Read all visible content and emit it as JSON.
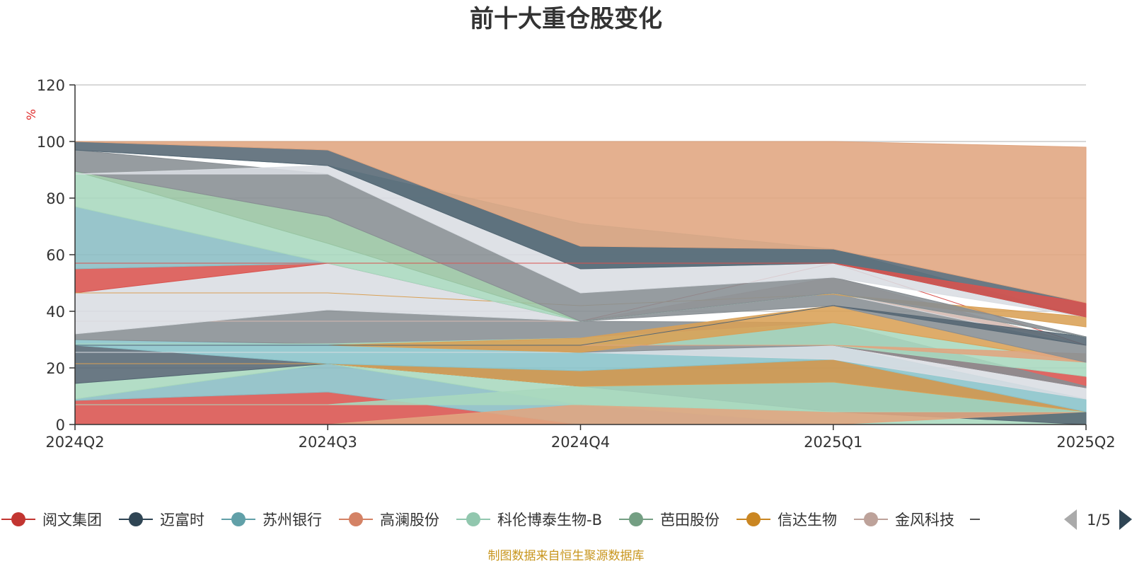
{
  "chart_data": {
    "type": "area",
    "title": "前十大重仓股变化",
    "ylabel": "%",
    "ylim": [
      0,
      120
    ],
    "yticks": [
      "0",
      "20",
      "40",
      "60",
      "80",
      "100",
      "120"
    ],
    "categories": [
      "2024Q2",
      "2024Q3",
      "2024Q4",
      "2025Q1",
      "2025Q2"
    ],
    "layers": [
      {
        "color": "#d9534f",
        "lower": [
          0,
          0,
          0,
          0,
          0
        ],
        "upper": [
          8.5,
          11.5,
          0,
          0,
          0
        ]
      },
      {
        "color": "#8abdc4",
        "lower": [
          8.5,
          11.5,
          0,
          0,
          0
        ],
        "upper": [
          9,
          21.5,
          7,
          0,
          0
        ]
      },
      {
        "color": "#a8d8be",
        "lower": [
          9,
          21.5,
          7,
          0,
          0
        ],
        "upper": [
          14.5,
          21.5,
          13.5,
          4.5,
          4.5
        ]
      },
      {
        "color": "#556673",
        "lower": [
          14.5,
          21.5,
          13.5,
          4.5,
          0
        ],
        "upper": [
          28,
          21.5,
          19,
          23,
          4.5
        ]
      },
      {
        "color": "#e0a580",
        "lower": [
          0,
          0,
          0,
          0,
          4.5
        ],
        "upper": [
          0,
          0,
          7,
          4.5,
          4.5
        ]
      },
      {
        "color": "#a8d8be",
        "lower": [
          7,
          7,
          7,
          4.5,
          4.5
        ],
        "upper": [
          7,
          7,
          13.5,
          15,
          4.5
        ]
      },
      {
        "color": "#d9a055",
        "lower": [
          21.5,
          21.5,
          13.5,
          15,
          4.5
        ],
        "upper": [
          21.5,
          21.5,
          19,
          23,
          4.5
        ]
      },
      {
        "color": "#89c3c9",
        "lower": [
          28,
          21.5,
          19,
          23,
          4.5
        ],
        "upper": [
          30,
          28.5,
          25.5,
          28,
          9
        ]
      },
      {
        "color": "#d9dde2",
        "lower": [
          25.5,
          25.5,
          25.5,
          23,
          9
        ],
        "upper": [
          25.5,
          25.5,
          25.5,
          28,
          13
        ]
      },
      {
        "color": "#d9534f",
        "lower": [
          28,
          28,
          28,
          28,
          13
        ],
        "upper": [
          28,
          28,
          28,
          28,
          17
        ]
      },
      {
        "color": "#888e93",
        "lower": [
          30,
          28.5,
          25.5,
          28,
          13
        ],
        "upper": [
          32,
          40.5,
          36.5,
          36,
          13.5
        ]
      },
      {
        "color": "#a8d8be",
        "lower": [
          28.5,
          28.5,
          28,
          28,
          17
        ],
        "upper": [
          28.5,
          28.5,
          30.5,
          36,
          22
        ]
      },
      {
        "color": "#d9a055",
        "lower": [
          28,
          28,
          25.5,
          36,
          22
        ],
        "upper": [
          28,
          28,
          30.5,
          42,
          22
        ]
      },
      {
        "color": "#e0a580",
        "lower": [
          28,
          28,
          28,
          28,
          22
        ],
        "upper": [
          28,
          28,
          28,
          28,
          25
        ]
      },
      {
        "color": "#888e93",
        "lower": [
          32,
          40.5,
          36.5,
          42,
          22
        ],
        "upper": [
          32,
          40.5,
          36.5,
          46.5,
          28
        ]
      },
      {
        "color": "#d4b8b0",
        "lower": [
          36.5,
          36.5,
          36.5,
          46.5,
          28
        ],
        "upper": [
          36.5,
          36.5,
          36.5,
          52,
          28
        ]
      },
      {
        "color": "#d9dde2",
        "lower": [
          32,
          40.5,
          36.5,
          46.5,
          28
        ],
        "upper": [
          46.5,
          57,
          36.5,
          46.5,
          28
        ]
      },
      {
        "color": "#d9534f",
        "lower": [
          46.5,
          57,
          36.5,
          57,
          28
        ],
        "upper": [
          55,
          57,
          36.5,
          57,
          28
        ]
      },
      {
        "color": "#d9a055",
        "lower": [
          46.5,
          46.5,
          42,
          46,
          34.5
        ],
        "upper": [
          46.5,
          46.5,
          42,
          46,
          38
        ]
      },
      {
        "color": "#556673",
        "lower": [
          28,
          28,
          28,
          42,
          28
        ],
        "upper": [
          28,
          28,
          28,
          42,
          31
        ]
      },
      {
        "color": "#8abdc4",
        "lower": [
          55,
          57,
          36.5,
          46.5,
          31
        ],
        "upper": [
          77,
          57,
          36.5,
          46.5,
          31
        ]
      },
      {
        "color": "#a8d8be",
        "lower": [
          77,
          57,
          36.5,
          46.5,
          31
        ],
        "upper": [
          89.5,
          64,
          36.5,
          46.5,
          31
        ]
      },
      {
        "color": "#98c4a2",
        "lower": [
          89.5,
          64,
          36.5,
          46.5,
          31
        ],
        "upper": [
          89.5,
          73.5,
          36.5,
          46.5,
          31
        ]
      },
      {
        "color": "#888e93",
        "lower": [
          89.5,
          73.5,
          36.5,
          46.5,
          31
        ],
        "upper": [
          97,
          88.5,
          46.5,
          52,
          31
        ]
      },
      {
        "color": "#d9dde2",
        "lower": [
          88.5,
          88.5,
          46.5,
          52,
          38
        ],
        "upper": [
          88.5,
          91.5,
          55,
          57,
          38
        ]
      },
      {
        "color": "#8abdc4",
        "lower": [
          97,
          91.5,
          55,
          57,
          38
        ],
        "upper": [
          97,
          91.5,
          71,
          62,
          38
        ]
      },
      {
        "color": "#556673",
        "lower": [
          97,
          91.5,
          55,
          57,
          38
        ],
        "upper": [
          100,
          97,
          63,
          62,
          43
        ]
      },
      {
        "color": "#d9534f",
        "lower": [
          57,
          57,
          57,
          57,
          38
        ],
        "upper": [
          57,
          57,
          57,
          57,
          43
        ]
      },
      {
        "color": "#e0a580",
        "lower": [
          100,
          97,
          63,
          62,
          43
        ],
        "upper": [
          100,
          100,
          100,
          100,
          98
        ]
      }
    ],
    "legend": {
      "items": [
        {
          "name": "阅文集团",
          "color": "#c23531"
        },
        {
          "name": "迈富时",
          "color": "#2f4554"
        },
        {
          "name": "苏州银行",
          "color": "#61a0a8"
        },
        {
          "name": "高澜股份",
          "color": "#d48265"
        },
        {
          "name": "科伦博泰生物-B",
          "color": "#91c7ae"
        },
        {
          "name": "芭田股份",
          "color": "#749f83"
        },
        {
          "name": "信达生物",
          "color": "#ca8622"
        },
        {
          "name": "金风科技",
          "color": "#bda29a"
        }
      ],
      "page": "1/5",
      "placement": "bottom"
    },
    "grid": true
  },
  "footer": {
    "source": "制图数据来自恒生聚源数据库",
    "color": "#c8961e"
  }
}
